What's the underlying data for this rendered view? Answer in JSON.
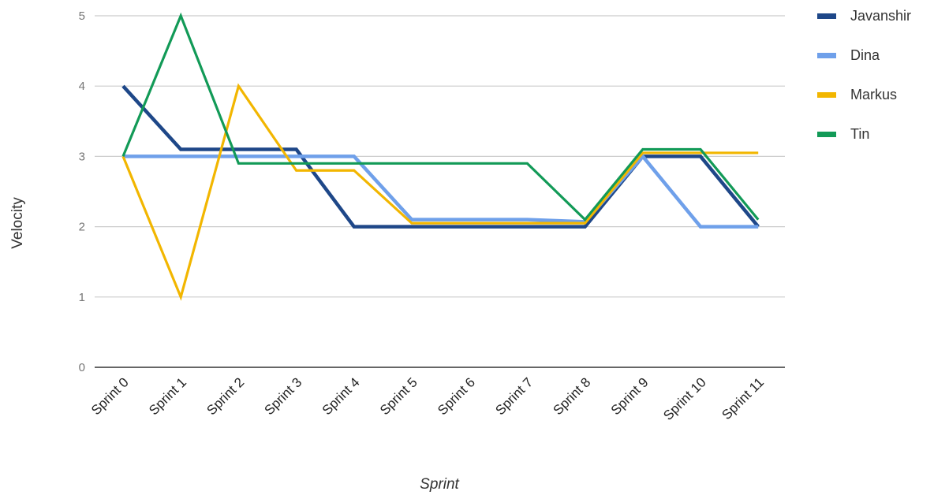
{
  "chart_data": {
    "type": "line",
    "categories": [
      "Sprint 0",
      "Sprint 1",
      "Sprint 2",
      "Sprint 3",
      "Sprint 4",
      "Sprint 5",
      "Sprint 6",
      "Sprint 7",
      "Sprint 8",
      "Sprint 9",
      "Sprint 10",
      "Sprint 11"
    ],
    "series": [
      {
        "name": "Javanshir",
        "color": "#1e4788",
        "values": [
          4,
          3.1,
          3.1,
          3.1,
          2,
          2,
          2,
          2,
          2,
          3,
          3,
          2
        ]
      },
      {
        "name": "Dina",
        "color": "#6fa0ea",
        "values": [
          3,
          3,
          3,
          3,
          3,
          2.1,
          2.1,
          2.1,
          2.07,
          3,
          2,
          2
        ]
      },
      {
        "name": "Markus",
        "color": "#f2b600",
        "values": [
          3,
          1,
          4,
          2.8,
          2.8,
          2.05,
          2.05,
          2.05,
          2.05,
          3.05,
          3.05,
          3.05
        ]
      },
      {
        "name": "Tin",
        "color": "#129a57",
        "values": [
          3,
          5,
          2.9,
          2.9,
          2.9,
          2.9,
          2.9,
          2.9,
          2.1,
          3.1,
          3.1,
          2.1
        ]
      }
    ],
    "title": "",
    "xlabel": "Sprint",
    "ylabel": "Velocity",
    "ylim": [
      0,
      5
    ],
    "yticks": [
      "0",
      "1",
      "2",
      "3",
      "4",
      "5"
    ],
    "grid": true,
    "legend": "right"
  }
}
